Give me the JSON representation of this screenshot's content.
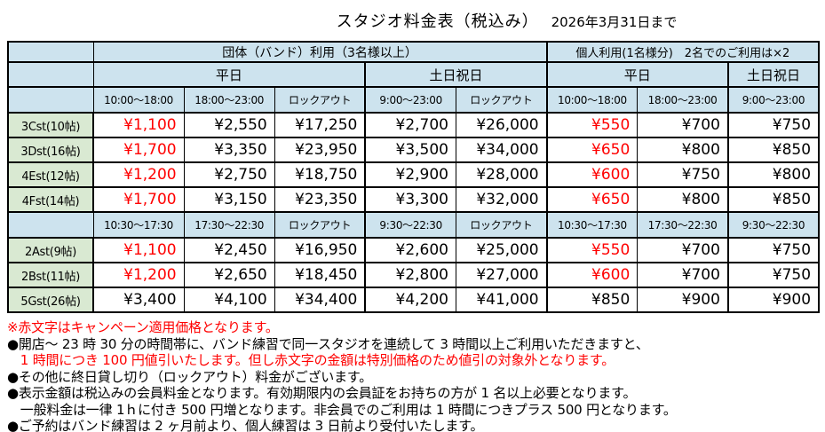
{
  "title": {
    "main": "スタジオ料金表（税込み）",
    "period": "2026年3月31日まで"
  },
  "colors": {
    "header_blue": "#cde3ee",
    "label_green": "#d9e9d2",
    "campaign_red": "#ff0000",
    "border": "#000000",
    "background": "#ffffff"
  },
  "table": {
    "group_headers": {
      "band": "団体（バンド）利用（3名様以上）",
      "personal": "個人利用(1名様分)　2名でのご利用は×2"
    },
    "day_headers": {
      "band_weekday": "平日",
      "band_weekend": "土日祝日",
      "personal_weekday": "平日",
      "personal_weekend": "土日祝日"
    },
    "time_headers_upper": [
      "10:00～18:00",
      "18:00～23:00",
      "ロックアウト",
      "9:00～23:00",
      "ロックアウト",
      "10:00～18:00",
      "18:00～23:00",
      "9:00～23:00"
    ],
    "time_headers_lower": [
      "10:30～17:30",
      "17:30～22:30",
      "ロックアウト",
      "9:30～22:30",
      "ロックアウト",
      "10:30～17:30",
      "17:30～22:30",
      "9:30～22:30"
    ],
    "rows_upper": [
      {
        "name": "3Cst(10帖)",
        "prices": [
          "¥1,100",
          "¥2,550",
          "¥17,250",
          "¥2,700",
          "¥26,000",
          "¥550",
          "¥700",
          "¥750"
        ]
      },
      {
        "name": "3Dst(16帖)",
        "prices": [
          "¥1,700",
          "¥3,350",
          "¥23,950",
          "¥3,500",
          "¥34,000",
          "¥650",
          "¥800",
          "¥850"
        ]
      },
      {
        "name": "4Est(12帖)",
        "prices": [
          "¥1,200",
          "¥2,750",
          "¥18,750",
          "¥2,900",
          "¥28,000",
          "¥600",
          "¥750",
          "¥800"
        ]
      },
      {
        "name": "4Fst(14帖)",
        "prices": [
          "¥1,700",
          "¥3,150",
          "¥23,350",
          "¥3,300",
          "¥32,000",
          "¥650",
          "¥800",
          "¥850"
        ]
      }
    ],
    "rows_lower": [
      {
        "name": "2Ast(9帖)",
        "prices": [
          "¥1,100",
          "¥2,450",
          "¥16,950",
          "¥2,600",
          "¥25,000",
          "¥550",
          "¥700",
          "¥750"
        ]
      },
      {
        "name": "2Bst(11帖)",
        "prices": [
          "¥1,200",
          "¥2,650",
          "¥18,450",
          "¥2,800",
          "¥27,000",
          "¥600",
          "¥700",
          "¥750"
        ]
      },
      {
        "name": "5Gst(26帖)",
        "prices": [
          "¥3,400",
          "¥4,100",
          "¥34,400",
          "¥4,200",
          "¥41,000",
          "¥850",
          "¥900",
          "¥900"
        ]
      }
    ]
  },
  "notes": [
    {
      "text": "※赤文字はキャンペーン適用価格となります。"
    },
    {
      "text": "●開店～ 23 時 30 分の時間帯に、バンド練習で同一スタジオを連続して 3 時間以上ご利用いただきますと、"
    },
    {
      "text": "　1 時間につき 100 円値引いたします。但し赤文字の金額は特別価格のため値引の対象外となります。"
    },
    {
      "text": "●その他に終日貸し切り（ロックアウト）料金がございます。"
    },
    {
      "text": "●表示金額は税込みの会員料金となります。有効期限内の会員証をお持ちの方が 1 名以上必要となります。"
    },
    {
      "text": "　一般料金は一律 1ｈに付き 500 円増となります。非会員でのご利用は 1 時間につきプラス 500 円となります。"
    },
    {
      "text": "●ご予約はバンド練習は 2 ヶ月前より、個人練習は 3 日前より受付いたします。"
    }
  ]
}
